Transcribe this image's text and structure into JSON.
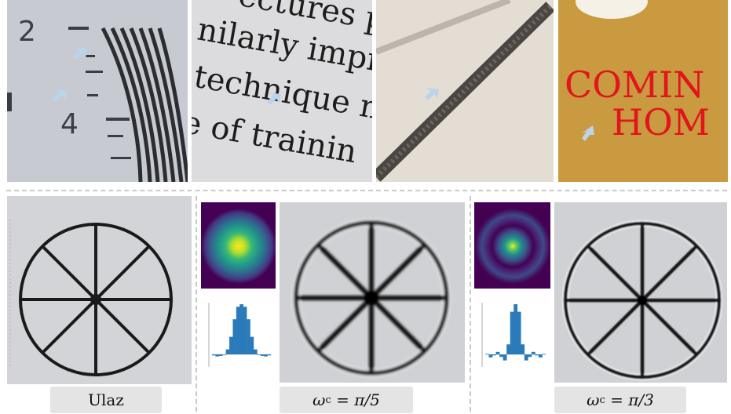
{
  "crops": [
    {
      "id": "ruler",
      "numbers": [
        "2",
        "4"
      ]
    },
    {
      "id": "text",
      "lines": [
        "nilarly impro",
        "technique na",
        "e of trainin",
        "ectures pr"
      ]
    },
    {
      "id": "line"
    },
    {
      "id": "sign",
      "lines": [
        "COMIN",
        "HOM"
      ]
    }
  ],
  "captions": {
    "original": "Ulaz",
    "wc5": "ω_c = π/5",
    "wc3": "ω_c = π/3",
    "wc5_symbol": "ω",
    "wc5_sub": "c",
    "wc5_rhs": "= π/5",
    "wc3_symbol": "ω",
    "wc3_sub": "c",
    "wc3_rhs": "= π/3"
  },
  "colors": {
    "arrow": "#bcd4ea",
    "sign_bg": "#cc9a3c",
    "sign_text": "#e0161c",
    "kernel_bg": "#440154",
    "bar_fill": "#2b7bba"
  },
  "kernel_profiles": {
    "wc5": [
      -0.02,
      -0.04,
      -0.03,
      0.0,
      0.1,
      0.35,
      0.7,
      0.95,
      1.0,
      0.95,
      0.7,
      0.35,
      0.1,
      0.0,
      -0.03,
      -0.04,
      -0.02
    ],
    "wc3": [
      0.01,
      -0.06,
      -0.02,
      0.05,
      -0.05,
      -0.12,
      0.2,
      0.85,
      1.0,
      0.85,
      0.2,
      -0.12,
      -0.05,
      0.05,
      -0.02,
      -0.06,
      0.01
    ]
  }
}
